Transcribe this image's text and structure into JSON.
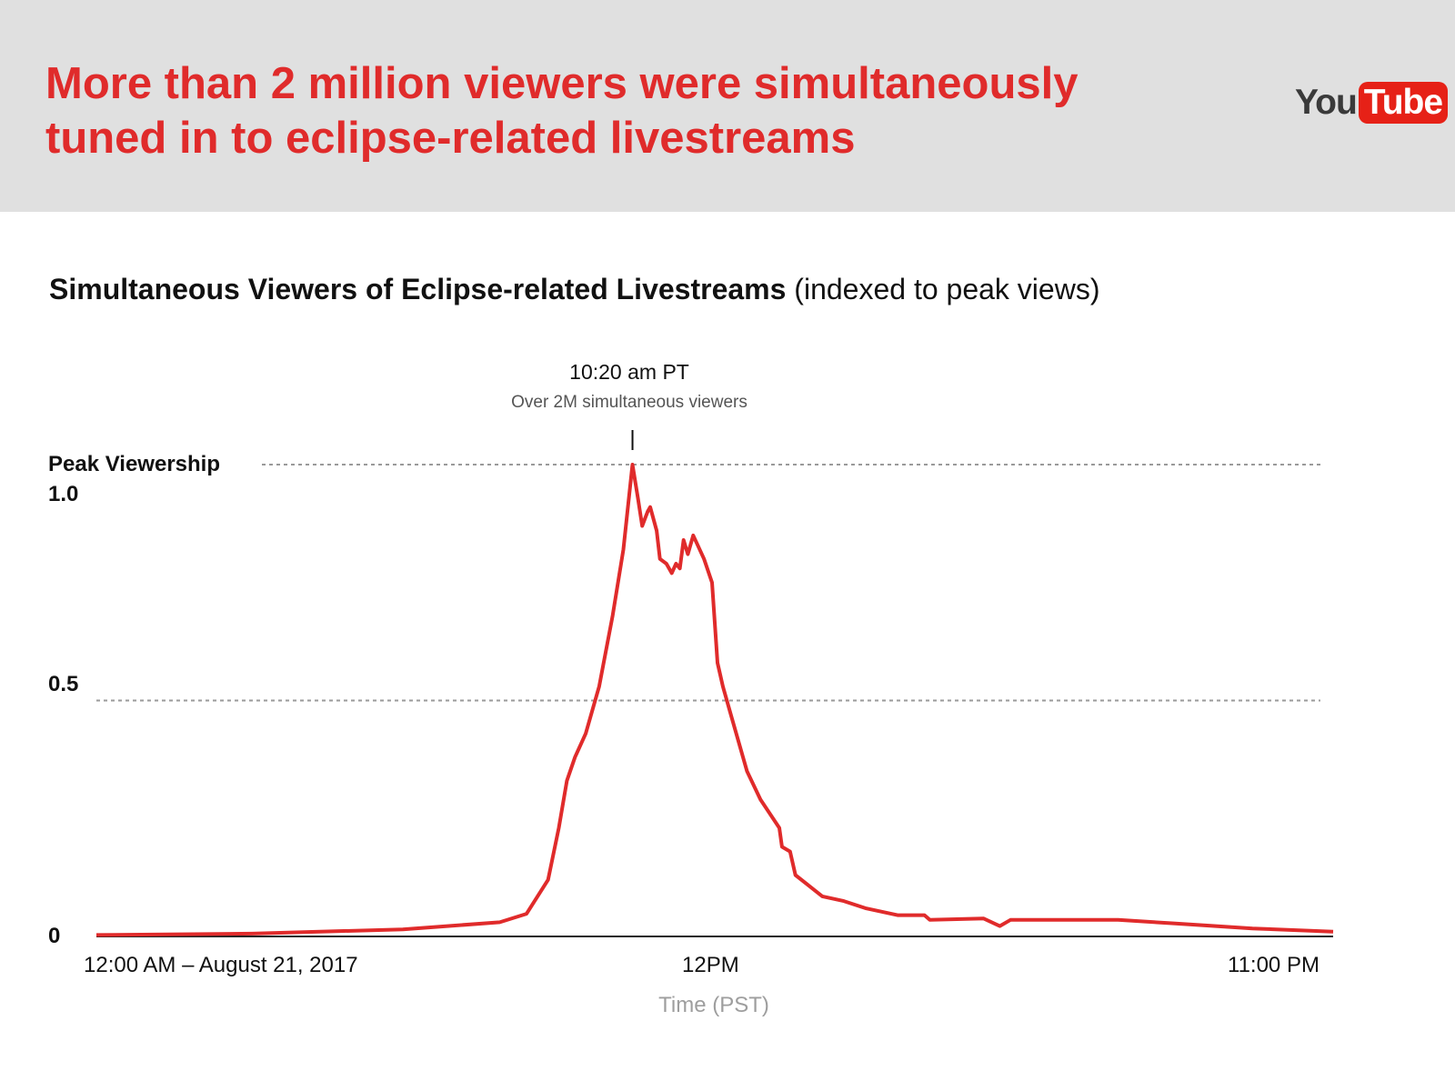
{
  "headline": {
    "line1": "More than 2 million viewers were simultaneously",
    "line2": "tuned in to eclipse-related livestreams"
  },
  "logo": {
    "you": "You",
    "tube": "Tube",
    "icon": "youtube-logo",
    "brand_color": "#e62117"
  },
  "chart_data": {
    "type": "line",
    "title": "Simultaneous Viewers of Eclipse-related Livestreams",
    "subtitle": "(indexed to peak views)",
    "xlabel": "Time (PST)",
    "ylabel": "",
    "x_range_hours": [
      0,
      23
    ],
    "ylim": [
      0,
      1.0
    ],
    "y_ticks": [
      {
        "value": 0,
        "label": "0"
      },
      {
        "value": 0.5,
        "label": "0.5"
      },
      {
        "value": 1.0,
        "label": "1.0"
      }
    ],
    "x_ticks": [
      {
        "hour": 0,
        "label": "12:00 AM – August 21, 2017"
      },
      {
        "hour": 11.5,
        "label": "12PM"
      },
      {
        "hour": 23,
        "label": "11:00 PM"
      }
    ],
    "reference_lines": [
      {
        "value": 1.0,
        "label": "Peak Viewership",
        "style": "dotted"
      },
      {
        "value": 0.5,
        "label": "",
        "style": "dotted"
      }
    ],
    "annotation": {
      "hour": 9.97,
      "time_label": "10:20 am PT",
      "detail": "Over 2M simultaneous viewers"
    },
    "grid": false,
    "line_color": "#e02b2b",
    "series": [
      {
        "points": [
          [
            0.0,
            0.003
          ],
          [
            2.9,
            0.006
          ],
          [
            5.7,
            0.015
          ],
          [
            7.5,
            0.03
          ],
          [
            8.0,
            0.048
          ],
          [
            8.4,
            0.12
          ],
          [
            8.6,
            0.23
          ],
          [
            8.75,
            0.33
          ],
          [
            8.9,
            0.38
          ],
          [
            9.1,
            0.43
          ],
          [
            9.35,
            0.53
          ],
          [
            9.6,
            0.68
          ],
          [
            9.8,
            0.82
          ],
          [
            9.97,
            1.0
          ],
          [
            10.07,
            0.93
          ],
          [
            10.15,
            0.87
          ],
          [
            10.25,
            0.9
          ],
          [
            10.3,
            0.91
          ],
          [
            10.42,
            0.86
          ],
          [
            10.48,
            0.8
          ],
          [
            10.6,
            0.79
          ],
          [
            10.7,
            0.77
          ],
          [
            10.78,
            0.79
          ],
          [
            10.85,
            0.78
          ],
          [
            10.92,
            0.84
          ],
          [
            11.0,
            0.81
          ],
          [
            11.1,
            0.85
          ],
          [
            11.3,
            0.8
          ],
          [
            11.45,
            0.75
          ],
          [
            11.55,
            0.58
          ],
          [
            11.65,
            0.53
          ],
          [
            11.8,
            0.47
          ],
          [
            12.1,
            0.35
          ],
          [
            12.35,
            0.29
          ],
          [
            12.7,
            0.23
          ],
          [
            12.75,
            0.19
          ],
          [
            12.9,
            0.18
          ],
          [
            13.0,
            0.13
          ],
          [
            13.5,
            0.085
          ],
          [
            13.9,
            0.075
          ],
          [
            14.3,
            0.06
          ],
          [
            14.9,
            0.045
          ],
          [
            15.4,
            0.045
          ],
          [
            15.5,
            0.035
          ],
          [
            16.5,
            0.038
          ],
          [
            16.8,
            0.022
          ],
          [
            17.0,
            0.035
          ],
          [
            18.0,
            0.035
          ],
          [
            19.0,
            0.035
          ],
          [
            20.0,
            0.028
          ],
          [
            21.5,
            0.017
          ],
          [
            23.0,
            0.01
          ]
        ]
      }
    ]
  }
}
